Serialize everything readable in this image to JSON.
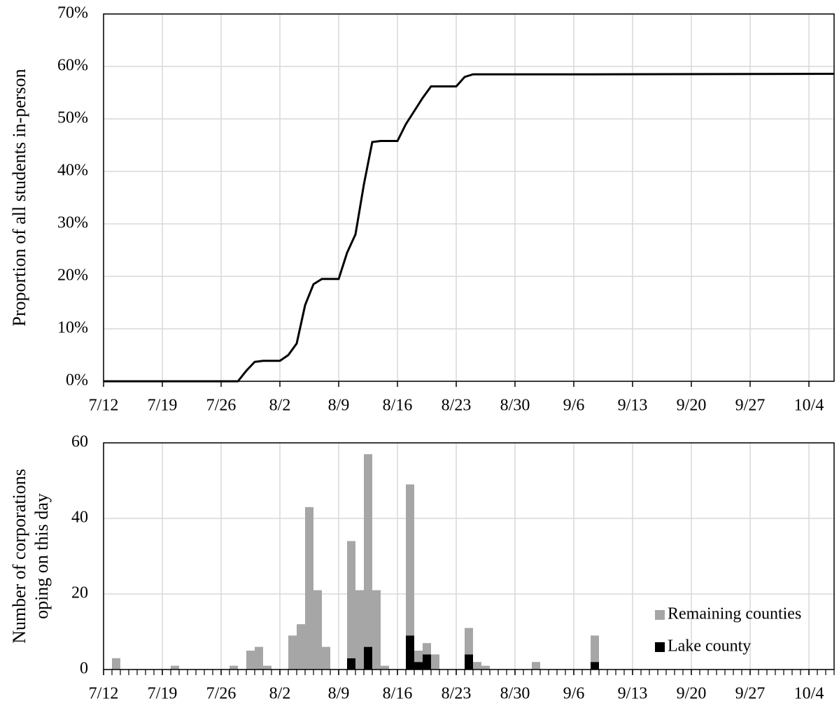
{
  "chart_data": [
    {
      "type": "line",
      "ylabel": "Proportion of all students in-person",
      "x": [
        0,
        16,
        17,
        18,
        19,
        21,
        22,
        23,
        24,
        25,
        26,
        28,
        29,
        30,
        31,
        32,
        33,
        35,
        36,
        37,
        38,
        39,
        42,
        43,
        44,
        58,
        87
      ],
      "values": [
        0,
        0,
        2,
        3.7,
        3.9,
        3.9,
        5,
        7.2,
        14.5,
        18.5,
        19.5,
        19.5,
        24.5,
        28,
        37.5,
        45.6,
        45.8,
        45.8,
        49,
        51.5,
        54,
        56.2,
        56.2,
        58,
        58.5,
        58.5,
        58.6
      ],
      "color": "#000000",
      "xlim": [
        0,
        87
      ],
      "xticks": [
        {
          "value": 0,
          "label": "7/12"
        },
        {
          "value": 7,
          "label": "7/19"
        },
        {
          "value": 14,
          "label": "7/26"
        },
        {
          "value": 21,
          "label": "8/2"
        },
        {
          "value": 28,
          "label": "8/9"
        },
        {
          "value": 35,
          "label": "8/16"
        },
        {
          "value": 42,
          "label": "8/23"
        },
        {
          "value": 49,
          "label": "8/30"
        },
        {
          "value": 56,
          "label": "9/6"
        },
        {
          "value": 63,
          "label": "9/13"
        },
        {
          "value": 70,
          "label": "9/20"
        },
        {
          "value": 77,
          "label": "9/27"
        },
        {
          "value": 84,
          "label": "10/4"
        }
      ],
      "ylim": [
        0,
        70
      ],
      "yticks": [
        {
          "value": 0,
          "label": "0%"
        },
        {
          "value": 10,
          "label": "10%"
        },
        {
          "value": 20,
          "label": "20%"
        },
        {
          "value": 30,
          "label": "30%"
        },
        {
          "value": 40,
          "label": "40%"
        },
        {
          "value": 50,
          "label": "50%"
        },
        {
          "value": 60,
          "label": "60%"
        },
        {
          "value": 70,
          "label": "70%"
        }
      ],
      "grid": true
    },
    {
      "type": "bar",
      "stacked": true,
      "ylabel": [
        "Number of corporations",
        "oping on this day"
      ],
      "x": [
        1,
        8,
        15,
        17,
        18,
        19,
        22,
        23,
        24,
        25,
        26,
        29,
        30,
        31,
        32,
        33,
        36,
        37,
        38,
        39,
        43,
        44,
        45,
        51,
        58
      ],
      "series": [
        {
          "name": "Lake county",
          "color": "#000000",
          "values": [
            0,
            0,
            0,
            0,
            0,
            0,
            0,
            0,
            0,
            0,
            0,
            3,
            0,
            6,
            0,
            0,
            9,
            2,
            4,
            0,
            4,
            0,
            0,
            0,
            2
          ]
        },
        {
          "name": "Remaining counties",
          "color": "#a6a6a6",
          "values": [
            3,
            1,
            1,
            5,
            6,
            1,
            9,
            12,
            43,
            21,
            6,
            31,
            21,
            51,
            21,
            1,
            40,
            3,
            3,
            4,
            7,
            2,
            1,
            2,
            7
          ]
        }
      ],
      "xlim": [
        0,
        87
      ],
      "xticks": [
        {
          "value": 0,
          "label": "7/12"
        },
        {
          "value": 7,
          "label": "7/19"
        },
        {
          "value": 14,
          "label": "7/26"
        },
        {
          "value": 21,
          "label": "8/2"
        },
        {
          "value": 28,
          "label": "8/9"
        },
        {
          "value": 35,
          "label": "8/16"
        },
        {
          "value": 42,
          "label": "8/23"
        },
        {
          "value": 49,
          "label": "8/30"
        },
        {
          "value": 56,
          "label": "9/6"
        },
        {
          "value": 63,
          "label": "9/13"
        },
        {
          "value": 70,
          "label": "9/20"
        },
        {
          "value": 77,
          "label": "9/27"
        },
        {
          "value": 84,
          "label": "10/4"
        }
      ],
      "ylim": [
        0,
        60
      ],
      "yticks": [
        0,
        20,
        40,
        60
      ],
      "grid": true,
      "legend": "lower right"
    }
  ]
}
